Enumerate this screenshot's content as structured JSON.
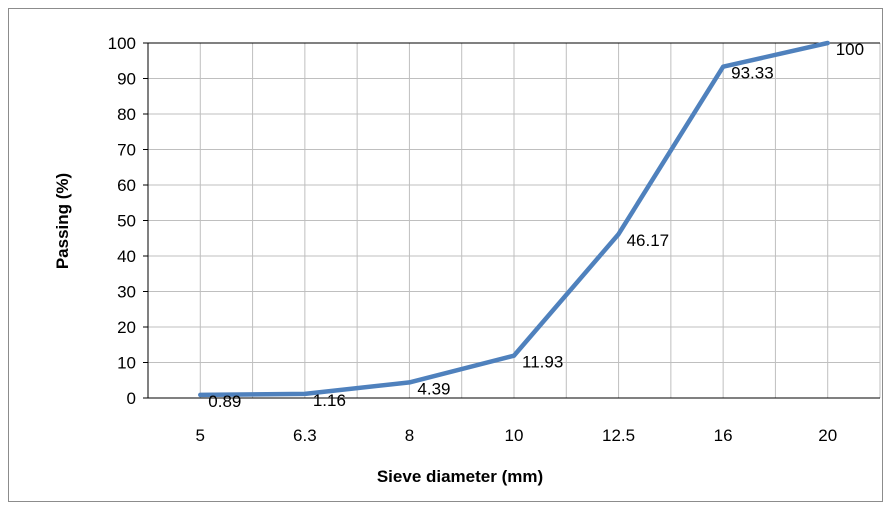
{
  "chart_data": {
    "type": "line",
    "title": "",
    "xlabel": "Sieve diameter (mm)",
    "ylabel": "Passing (%)",
    "categories": [
      "5",
      "6.3",
      "8",
      "10",
      "12.5",
      "16",
      "20"
    ],
    "series": [
      {
        "values": [
          0.89,
          1.16,
          4.39,
          11.93,
          46.17,
          93.33,
          100
        ],
        "data_labels": [
          "0.89",
          "1.16",
          "4.39",
          "11.93",
          "46.17",
          "93.33",
          "100"
        ],
        "color": "#4f81bd"
      }
    ],
    "ylim": [
      0,
      100
    ],
    "yticks": [
      "0",
      "10",
      "20",
      "30",
      "40",
      "50",
      "60",
      "70",
      "80",
      "90",
      "100"
    ],
    "grid": true,
    "legend": "none",
    "gridline_color": "#bfbfbf"
  }
}
